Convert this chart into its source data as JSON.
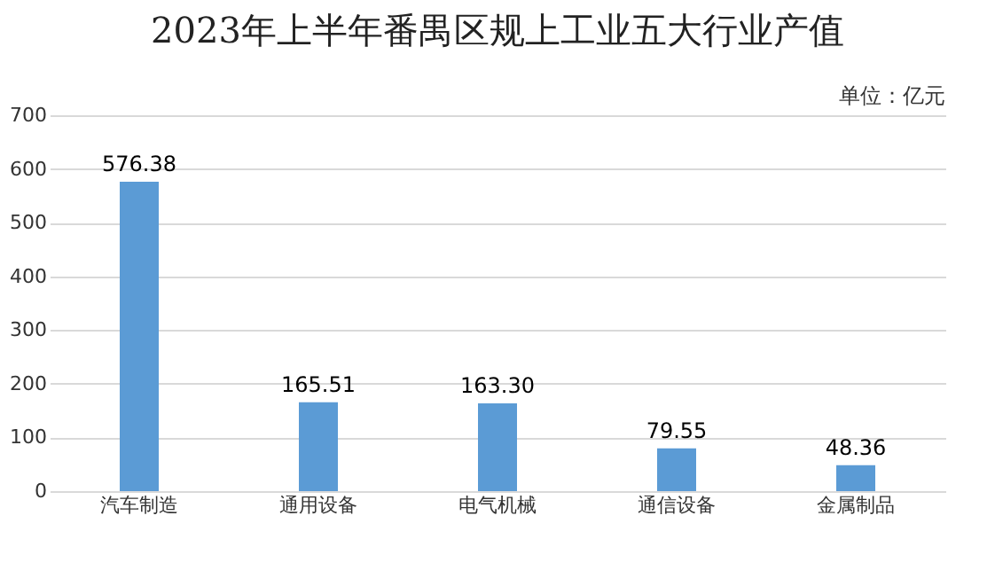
{
  "chart_data": {
    "type": "bar",
    "title": "2023年上半年番禺区规上工业五大行业产值",
    "annotations": [
      "单位：亿元"
    ],
    "categories": [
      "汽车制造",
      "通用设备",
      "电气机械",
      "通信设备",
      "金属制品"
    ],
    "values": [
      576.38,
      165.51,
      163.3,
      79.55,
      48.36
    ],
    "value_labels": [
      "576.38",
      "165.51",
      "163.30",
      "79.55",
      "48.36"
    ],
    "color": "#5b9bd5",
    "ylim": [
      0,
      700
    ],
    "yticks": [
      0,
      100,
      200,
      300,
      400,
      500,
      600,
      700
    ],
    "grid": "y"
  }
}
